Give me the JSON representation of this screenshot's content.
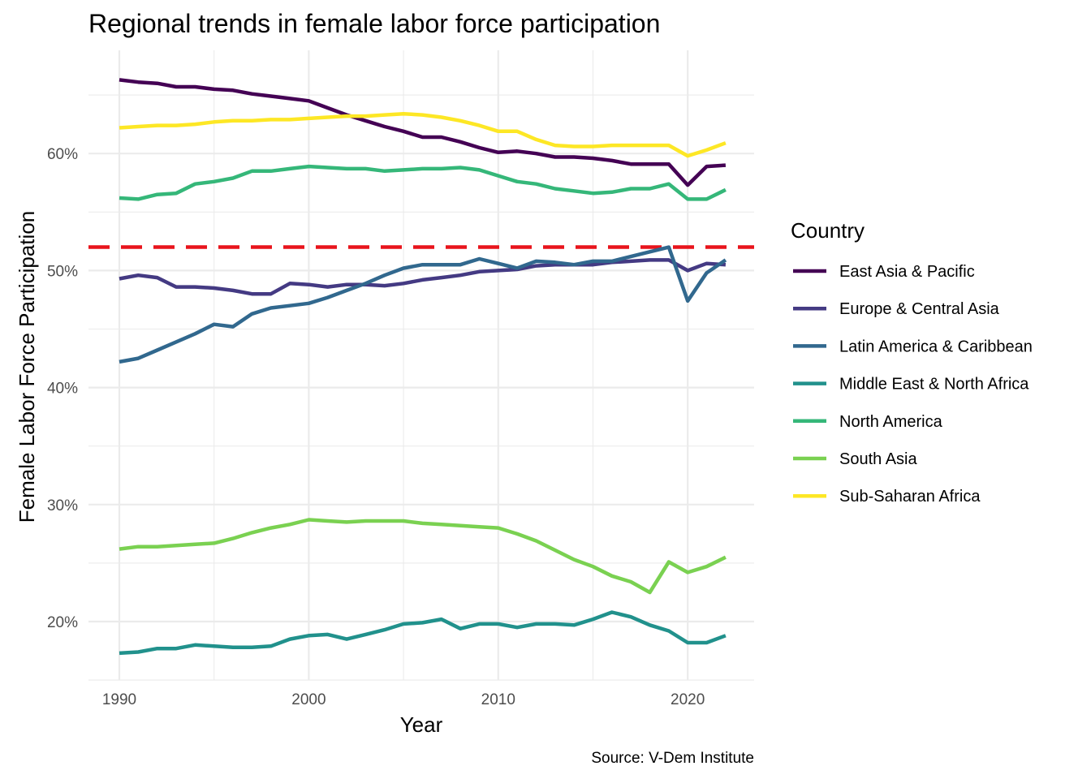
{
  "chart_data": {
    "type": "line",
    "title": "Regional trends in female labor force participation",
    "xlabel": "Year",
    "ylabel": "Female Labor Force Participation",
    "caption": "Source: V-Dem Institute",
    "legend_title": "Country",
    "legend_position": "right",
    "grid": true,
    "xlim": [
      1990,
      2022
    ],
    "ylim": [
      15,
      68
    ],
    "x_ticks": [
      1990,
      2000,
      2010,
      2020
    ],
    "x_tick_labels": [
      "1990",
      "2000",
      "2010",
      "2020"
    ],
    "y_ticks": [
      20,
      30,
      40,
      50,
      60
    ],
    "y_tick_labels": [
      "20%",
      "30%",
      "40%",
      "50%",
      "60%"
    ],
    "reference_line": {
      "y": 52,
      "color": "#e8141c",
      "style": "dashed"
    },
    "x": [
      1990,
      1991,
      1992,
      1993,
      1994,
      1995,
      1996,
      1997,
      1998,
      1999,
      2000,
      2001,
      2002,
      2003,
      2004,
      2005,
      2006,
      2007,
      2008,
      2009,
      2010,
      2011,
      2012,
      2013,
      2014,
      2015,
      2016,
      2017,
      2018,
      2019,
      2020,
      2021,
      2022
    ],
    "series": [
      {
        "name": "East Asia & Pacific",
        "color": "#440154",
        "values": [
          66.3,
          66.1,
          66.0,
          65.7,
          65.7,
          65.5,
          65.4,
          65.1,
          64.9,
          64.7,
          64.5,
          63.9,
          63.3,
          62.8,
          62.3,
          61.9,
          61.4,
          61.4,
          61.0,
          60.5,
          60.1,
          60.2,
          60.0,
          59.7,
          59.7,
          59.6,
          59.4,
          59.1,
          59.1,
          59.1,
          57.3,
          58.9,
          59.0
        ]
      },
      {
        "name": "Europe & Central Asia",
        "color": "#443a83",
        "values": [
          49.3,
          49.6,
          49.4,
          48.6,
          48.6,
          48.5,
          48.3,
          48.0,
          48.0,
          48.9,
          48.8,
          48.6,
          48.8,
          48.8,
          48.7,
          48.9,
          49.2,
          49.4,
          49.6,
          49.9,
          50.0,
          50.1,
          50.4,
          50.5,
          50.5,
          50.5,
          50.7,
          50.8,
          50.9,
          50.9,
          50.0,
          50.6,
          50.5
        ]
      },
      {
        "name": "Latin America & Caribbean",
        "color": "#31688e",
        "values": [
          42.2,
          42.5,
          43.2,
          43.9,
          44.6,
          45.4,
          45.2,
          46.3,
          46.8,
          47.0,
          47.2,
          47.7,
          48.3,
          48.9,
          49.6,
          50.2,
          50.5,
          50.5,
          50.5,
          51.0,
          50.6,
          50.2,
          50.8,
          50.7,
          50.5,
          50.8,
          50.8,
          51.2,
          51.6,
          52.0,
          47.4,
          49.8,
          50.9
        ]
      },
      {
        "name": "Middle East & North Africa",
        "color": "#21918c",
        "values": [
          17.3,
          17.4,
          17.7,
          17.7,
          18.0,
          17.9,
          17.8,
          17.8,
          17.9,
          18.5,
          18.8,
          18.9,
          18.5,
          18.9,
          19.3,
          19.8,
          19.9,
          20.2,
          19.4,
          19.8,
          19.8,
          19.5,
          19.8,
          19.8,
          19.7,
          20.2,
          20.8,
          20.4,
          19.7,
          19.2,
          18.2,
          18.2,
          18.8
        ]
      },
      {
        "name": "North America",
        "color": "#35b779",
        "values": [
          56.2,
          56.1,
          56.5,
          56.6,
          57.4,
          57.6,
          57.9,
          58.5,
          58.5,
          58.7,
          58.9,
          58.8,
          58.7,
          58.7,
          58.5,
          58.6,
          58.7,
          58.7,
          58.8,
          58.6,
          58.1,
          57.6,
          57.4,
          57.0,
          56.8,
          56.6,
          56.7,
          57.0,
          57.0,
          57.4,
          56.1,
          56.1,
          56.9
        ]
      },
      {
        "name": "South Asia",
        "color": "#7ad151",
        "values": [
          26.2,
          26.4,
          26.4,
          26.5,
          26.6,
          26.7,
          27.1,
          27.6,
          28.0,
          28.3,
          28.7,
          28.6,
          28.5,
          28.6,
          28.6,
          28.6,
          28.4,
          28.3,
          28.2,
          28.1,
          28.0,
          27.5,
          26.9,
          26.1,
          25.3,
          24.7,
          23.9,
          23.4,
          22.5,
          25.1,
          24.2,
          24.7,
          25.5
        ]
      },
      {
        "name": "Sub-Saharan Africa",
        "color": "#fde725",
        "values": [
          62.2,
          62.3,
          62.4,
          62.4,
          62.5,
          62.7,
          62.8,
          62.8,
          62.9,
          62.9,
          63.0,
          63.1,
          63.2,
          63.2,
          63.3,
          63.4,
          63.3,
          63.1,
          62.8,
          62.4,
          61.9,
          61.9,
          61.2,
          60.7,
          60.6,
          60.6,
          60.7,
          60.7,
          60.7,
          60.7,
          59.8,
          60.3,
          60.9
        ]
      }
    ]
  }
}
